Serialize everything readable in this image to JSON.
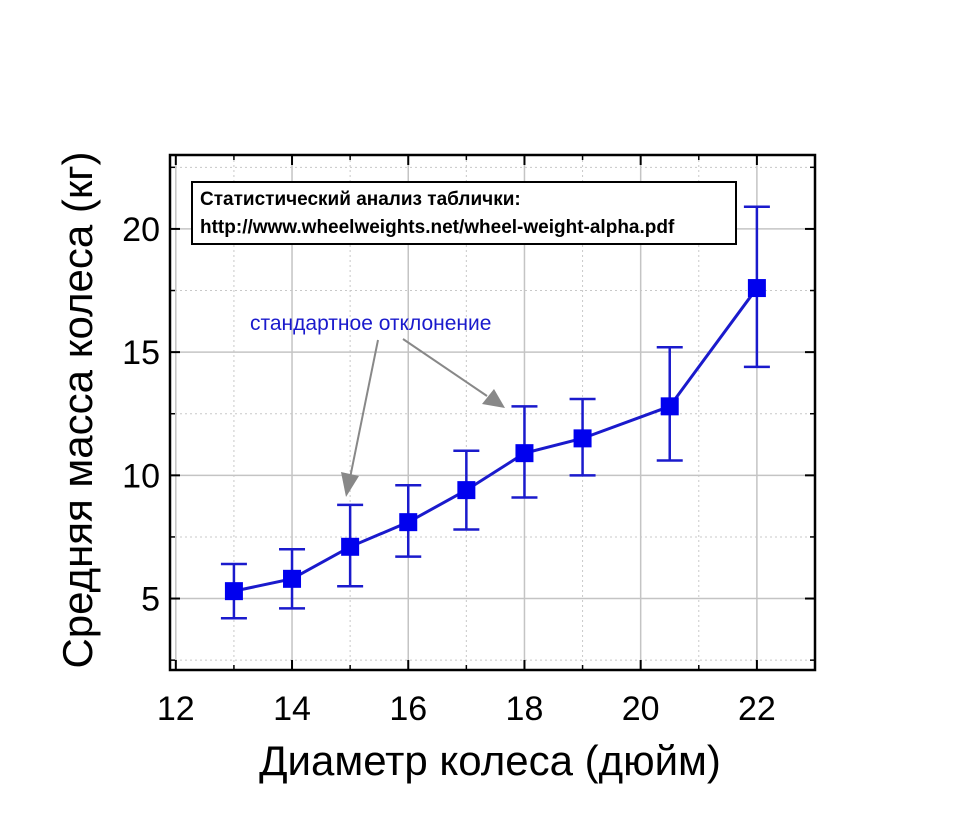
{
  "chart_data": {
    "type": "scatter",
    "xlabel": "Диаметр колеса (дюйм)",
    "ylabel": "Средняя масса колеса (кг)",
    "xlim": [
      11.9,
      23.0
    ],
    "ylim": [
      2.1,
      23.0
    ],
    "x_ticks": [
      12,
      14,
      16,
      18,
      20,
      22
    ],
    "x_tick_labels": [
      "12",
      "14",
      "16",
      "18",
      "20",
      "22"
    ],
    "y_ticks": [
      5,
      10,
      15,
      20
    ],
    "y_tick_labels": [
      "5",
      "10",
      "15",
      "20"
    ],
    "grid": true,
    "marker_color": "#0000ee",
    "line_color": "#1a1acc",
    "series": [
      {
        "x": [
          13,
          14,
          15,
          16,
          17,
          18,
          19,
          20.5,
          22
        ],
        "y": [
          5.3,
          5.8,
          7.1,
          8.1,
          9.4,
          10.9,
          11.5,
          12.8,
          17.6
        ],
        "error_low": [
          4.2,
          4.6,
          5.5,
          6.7,
          7.8,
          9.1,
          10.0,
          10.6,
          14.4
        ],
        "error_high": [
          6.4,
          7.0,
          8.8,
          9.6,
          11.0,
          12.8,
          13.1,
          15.2,
          20.9
        ]
      }
    ],
    "note_lines": [
      "Статистический анализ таблички:",
      "http://www.wheelweights.net/wheel-weight-alpha.pdf"
    ],
    "annotation": "стандартное отклонение"
  }
}
